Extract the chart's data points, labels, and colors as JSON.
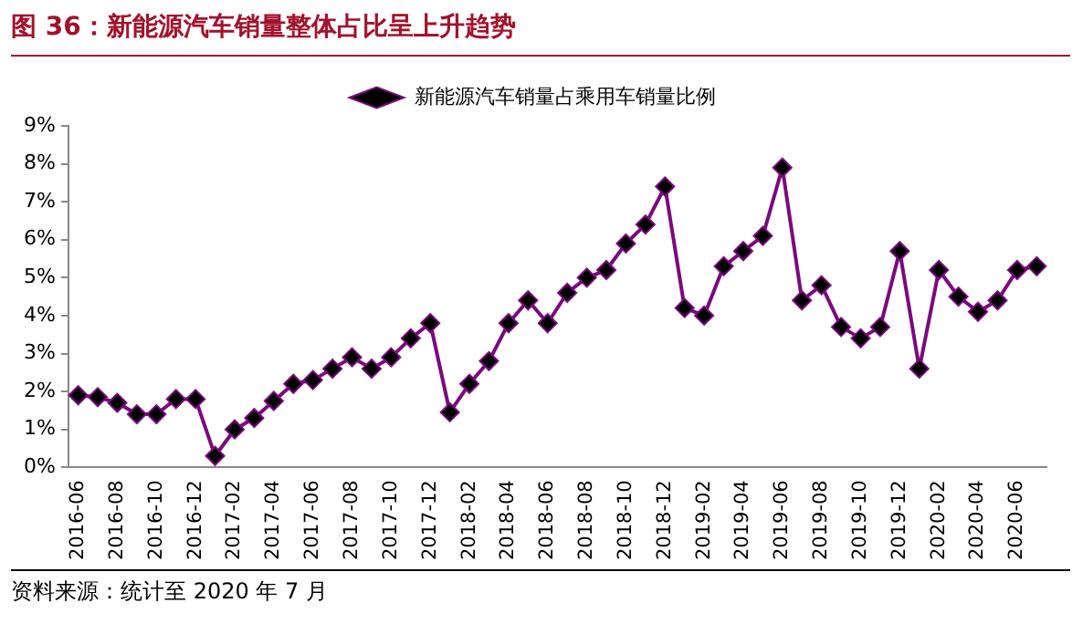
{
  "chart_data": {
    "type": "line",
    "title": "图 36：新能源汽车销量整体占比呈上升趋势",
    "categories": [
      "2016-06",
      null,
      "2016-08",
      null,
      "2016-10",
      null,
      "2016-12",
      null,
      "2017-02",
      null,
      "2017-04",
      null,
      "2017-06",
      null,
      "2017-08",
      null,
      "2017-10",
      null,
      "2017-12",
      null,
      "2018-02",
      null,
      "2018-04",
      null,
      "2018-06",
      null,
      "2018-08",
      null,
      "2018-10",
      null,
      "2018-12",
      null,
      "2019-02",
      null,
      "2019-04",
      null,
      "2019-06",
      null,
      "2019-08",
      null,
      "2019-10",
      null,
      "2019-12",
      null,
      "2020-02",
      null,
      "2020-04",
      null,
      "2020-06",
      null
    ],
    "series": [
      {
        "name": "新能源汽车销量占乘用车销量比例",
        "color": "#7b0a7e",
        "values": [
          1.9,
          1.85,
          1.7,
          1.4,
          1.4,
          1.8,
          1.8,
          0.3,
          1.0,
          1.3,
          1.75,
          2.2,
          2.3,
          2.6,
          2.9,
          2.6,
          2.9,
          3.4,
          3.8,
          1.45,
          2.2,
          2.8,
          3.8,
          4.4,
          3.8,
          4.6,
          5.0,
          5.2,
          5.9,
          6.4,
          7.4,
          4.2,
          4.0,
          5.3,
          5.7,
          6.1,
          7.9,
          4.4,
          4.8,
          3.7,
          3.4,
          3.7,
          5.7,
          2.6,
          5.2,
          4.5,
          4.1,
          4.4,
          5.2,
          5.3
        ]
      }
    ],
    "ylim": [
      0,
      9
    ],
    "yticks": [
      {
        "value": 0,
        "label": "0%"
      },
      {
        "value": 1,
        "label": "1%"
      },
      {
        "value": 2,
        "label": "2%"
      },
      {
        "value": 3,
        "label": "3%"
      },
      {
        "value": 4,
        "label": "4%"
      },
      {
        "value": 5,
        "label": "5%"
      },
      {
        "value": 6,
        "label": "6%"
      },
      {
        "value": 7,
        "label": "7%"
      },
      {
        "value": 8,
        "label": "8%"
      },
      {
        "value": 9,
        "label": "9%"
      }
    ],
    "grid": false,
    "legend": "top",
    "marker": "diamond",
    "line_style": "solid",
    "annotations": [
      "资料来源：统计至 2020 年 7 月"
    ]
  }
}
